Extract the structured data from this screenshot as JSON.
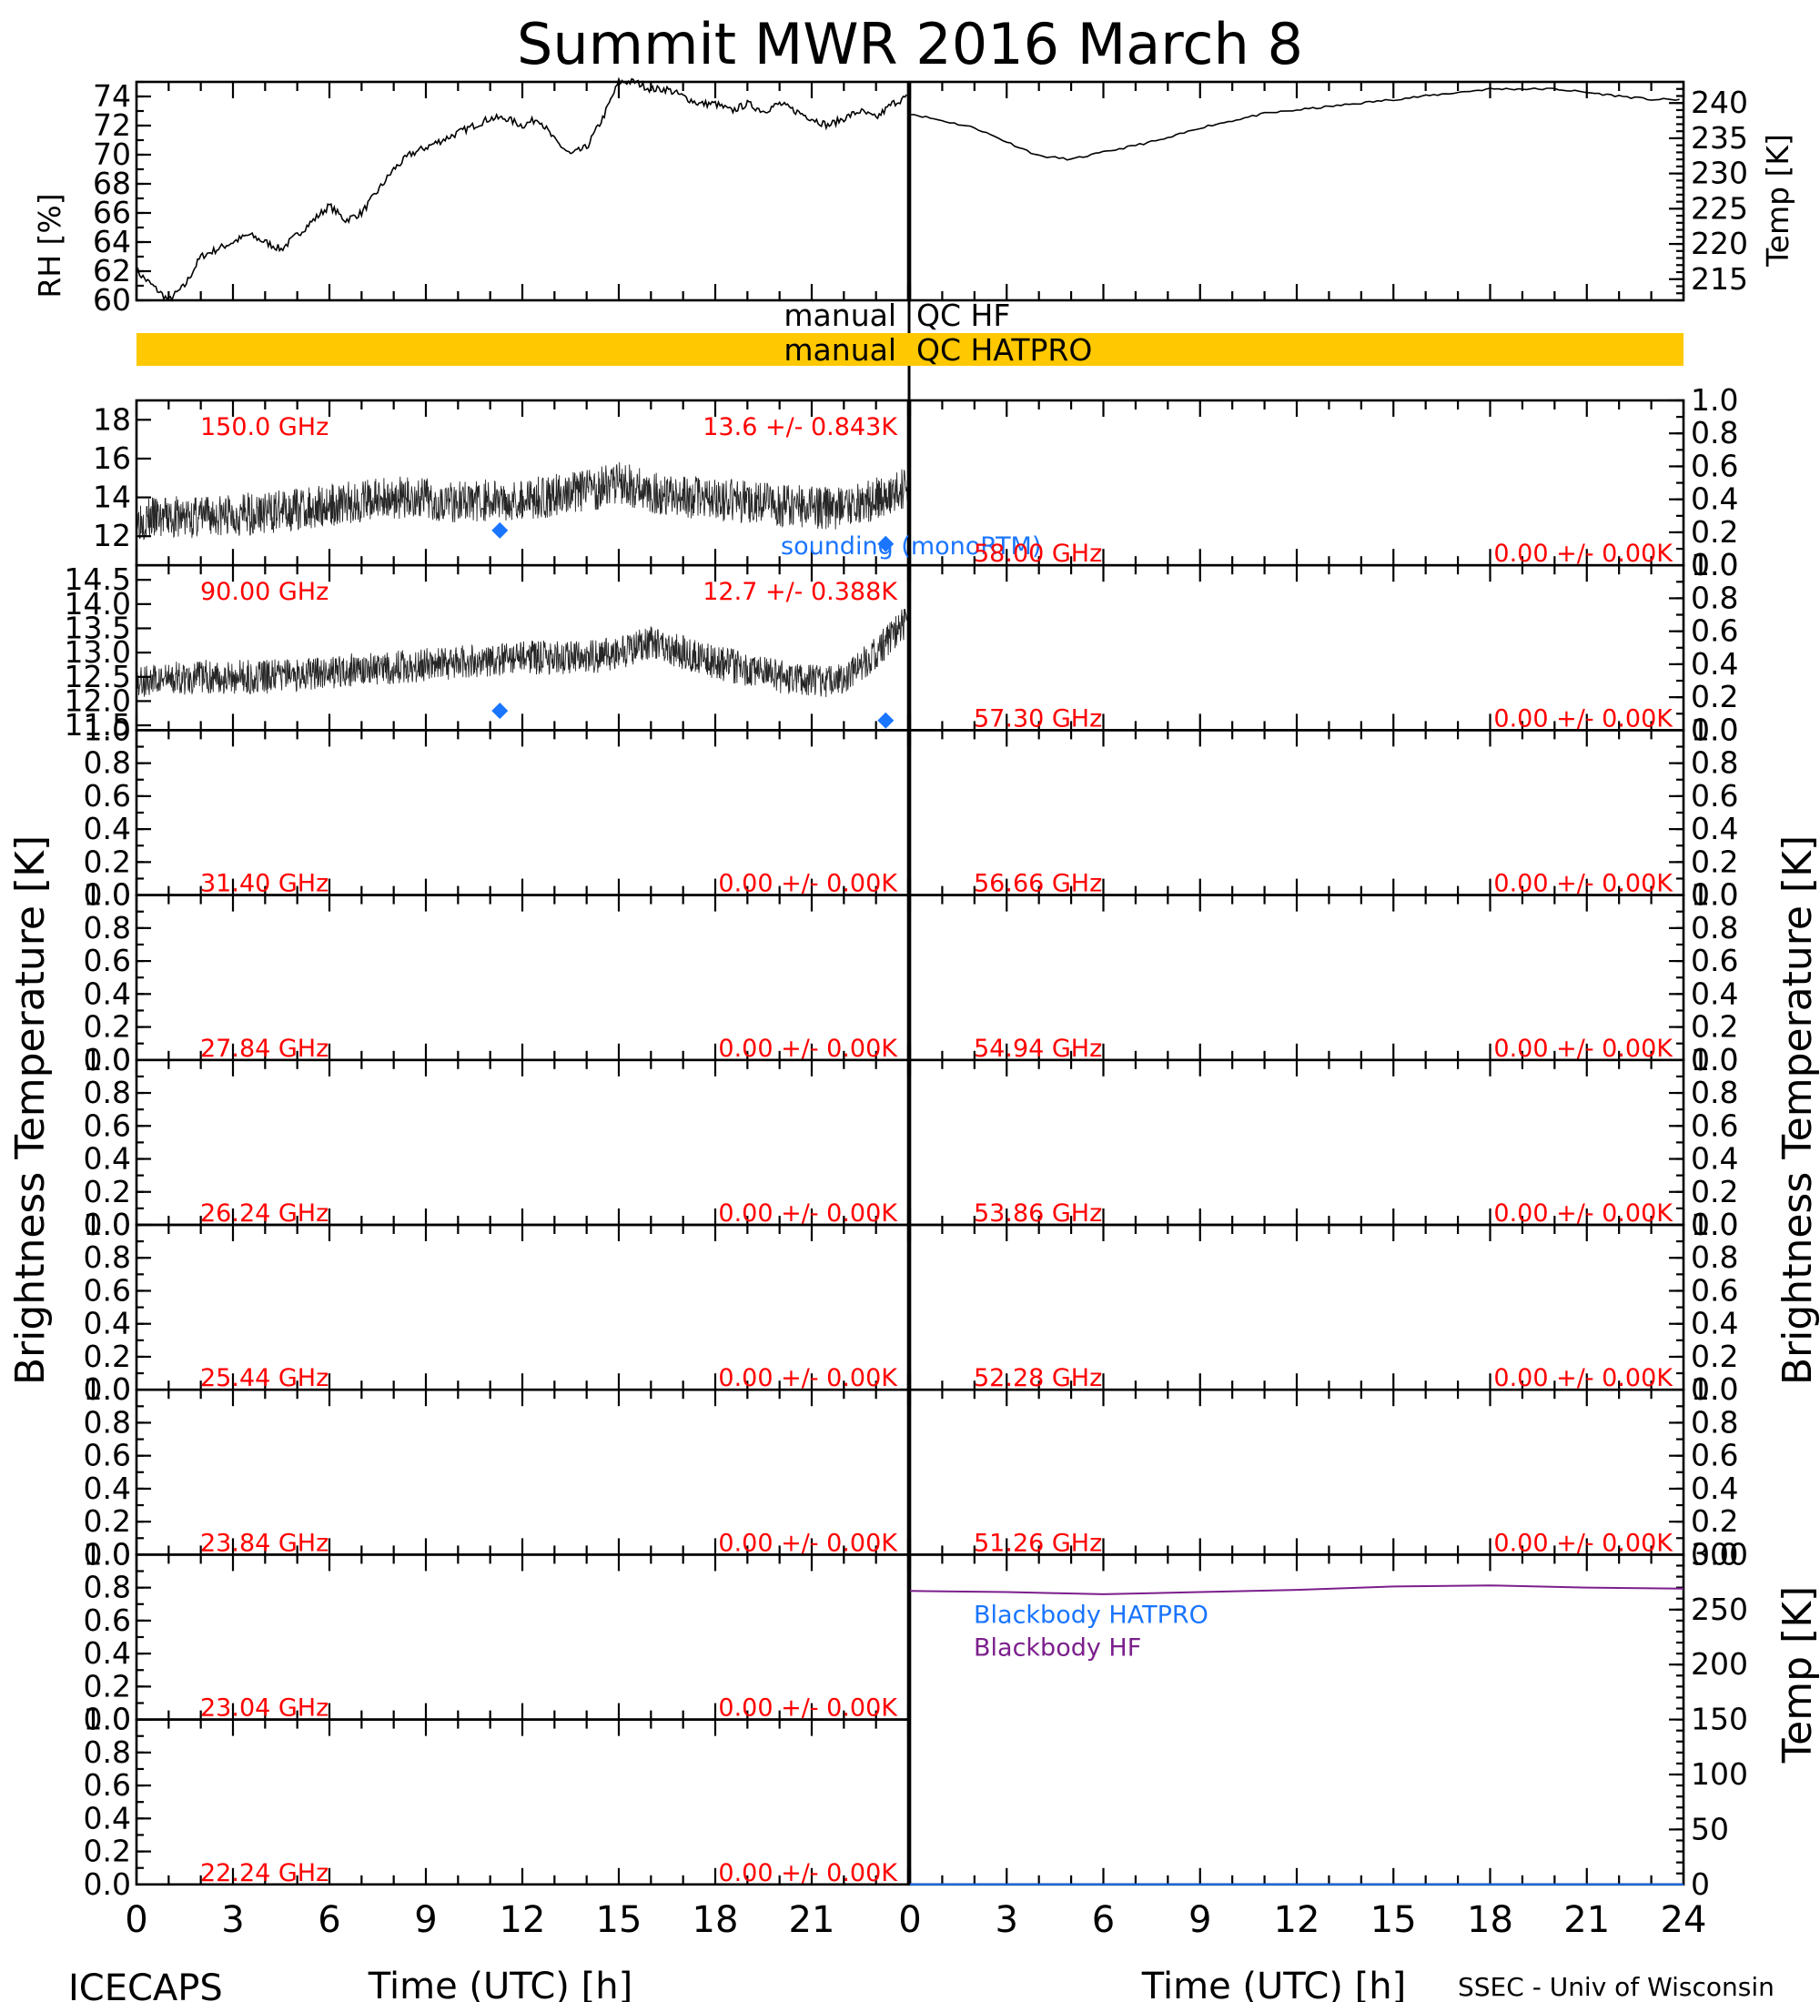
{
  "title": "Summit MWR 2016 March  8",
  "footer": {
    "left": "ICECAPS",
    "right": "SSEC - Univ of Wisconsin"
  },
  "qc": {
    "hf_prefix": "manual",
    "hf_label": "QC HF",
    "hatpro_prefix": "manual",
    "hatpro_label": "QC HATPRO",
    "hatpro_color": "#ffc800"
  },
  "axis_labels": {
    "rh": "RH [%]",
    "temp_top": "Temp [K]",
    "bt_left": "Brightness Temperature [K]",
    "bt_right": "Brightness Temperature [K]",
    "bb_temp": "Temp [K]",
    "time_left": "Time (UTC) [h]",
    "time_right": "Time (UTC) [h]"
  },
  "colors": {
    "data": "#000000",
    "annotation": "#ff0000",
    "sounding": "#1a75ff",
    "bb_hatpro": "#1a75ff",
    "bb_hf": "#7b1f8c"
  },
  "chart_data": [
    {
      "id": "rh",
      "type": "line",
      "side": "left",
      "ylabel": "RH [%]",
      "xlim": [
        0,
        24
      ],
      "ylim": [
        60,
        75
      ],
      "yticks": [
        "60",
        "62",
        "64",
        "66",
        "68",
        "70",
        "72",
        "74"
      ],
      "x": [
        0,
        0.5,
        1,
        1.5,
        2,
        2.5,
        3,
        3.5,
        4,
        4.5,
        5,
        5.5,
        6,
        6.5,
        7,
        7.5,
        8,
        8.5,
        9,
        9.5,
        10,
        10.5,
        11,
        11.5,
        12,
        12.5,
        13,
        13.5,
        14,
        14.5,
        15,
        15.5,
        16,
        16.5,
        17,
        17.5,
        18,
        18.5,
        19,
        19.5,
        20,
        20.5,
        21,
        21.5,
        22,
        22.5,
        23,
        23.5,
        24
      ],
      "values": [
        62,
        61,
        60,
        61,
        63,
        63.5,
        64,
        64.5,
        64,
        63.5,
        64.5,
        65.5,
        66.5,
        65.5,
        66,
        67.5,
        69,
        70,
        70.5,
        71,
        71.5,
        72,
        72.5,
        72.5,
        72,
        72.5,
        71,
        70,
        70.5,
        72.5,
        75,
        75,
        74.5,
        74.5,
        74,
        73.5,
        73.5,
        73,
        73.5,
        73,
        73.5,
        73,
        72.5,
        72,
        72.5,
        73,
        72.5,
        73.5,
        74
      ]
    },
    {
      "id": "air_temp",
      "type": "line",
      "side": "right",
      "ylabel": "Temp [K]",
      "xlim": [
        0,
        24
      ],
      "ylim": [
        212,
        243
      ],
      "yticks": [
        "215",
        "220",
        "225",
        "230",
        "235",
        "240"
      ],
      "x": [
        0,
        1,
        2,
        3,
        4,
        5,
        6,
        7,
        8,
        9,
        10,
        11,
        12,
        13,
        14,
        15,
        16,
        17,
        18,
        19,
        20,
        21,
        22,
        23,
        24
      ],
      "values": [
        238.5,
        237.5,
        236.5,
        234.5,
        232.5,
        232,
        233,
        234,
        235,
        236.5,
        237.5,
        238.5,
        239,
        239.5,
        240,
        240.5,
        241,
        241.5,
        242,
        242,
        242,
        241.5,
        241,
        240.5,
        240.5
      ]
    },
    {
      "id": "bt_150",
      "type": "scatter",
      "side": "left",
      "label": "150.0 GHz",
      "stats": "13.6 +/- 0.843K",
      "xlim": [
        0,
        24
      ],
      "ylim": [
        10.5,
        19
      ],
      "yticks": [
        "12",
        "14",
        "16",
        "18"
      ],
      "sounding_label": "sounding (monoRTM)",
      "trend": {
        "x": [
          0,
          2,
          4,
          6,
          8,
          10,
          12,
          14,
          15,
          16,
          18,
          20,
          22,
          24
        ],
        "values": [
          12.9,
          13,
          13.2,
          13.6,
          14,
          13.8,
          13.9,
          14.3,
          14.8,
          14.2,
          13.9,
          13.6,
          13.4,
          14.5
        ]
      },
      "noise": 1.1,
      "sounding": [
        {
          "x": 11.3,
          "y": 12.3
        },
        {
          "x": 23.3,
          "y": 11.6
        }
      ]
    },
    {
      "id": "bt_90",
      "type": "scatter",
      "side": "left",
      "label": "90.00 GHz",
      "stats": "12.7 +/- 0.388K",
      "xlim": [
        0,
        24
      ],
      "ylim": [
        11.4,
        14.8
      ],
      "yticks": [
        "11.5",
        "12.0",
        "12.5",
        "13.0",
        "13.5",
        "14.0",
        "14.5"
      ],
      "trend": {
        "x": [
          0,
          2,
          4,
          6,
          8,
          10,
          12,
          14,
          15,
          16,
          18,
          20,
          22,
          23,
          24
        ],
        "values": [
          12.4,
          12.5,
          12.5,
          12.6,
          12.7,
          12.8,
          12.9,
          12.9,
          13,
          13.2,
          12.8,
          12.5,
          12.4,
          13,
          13.7
        ]
      },
      "noise": 0.35,
      "sounding": [
        {
          "x": 11.3,
          "y": 11.8
        },
        {
          "x": 23.3,
          "y": 11.6
        }
      ]
    },
    {
      "id": "ch_58_00",
      "side": "right",
      "label": "58.00 GHz",
      "stats": "0.00 +/- 0.00K",
      "ylim": [
        0,
        1
      ]
    },
    {
      "id": "ch_57_30",
      "side": "right",
      "label": "57.30 GHz",
      "stats": "0.00 +/- 0.00K",
      "ylim": [
        0,
        1
      ]
    },
    {
      "id": "ch_31_40",
      "side": "left",
      "label": "31.40 GHz",
      "stats": "0.00 +/- 0.00K",
      "ylim": [
        0,
        1
      ]
    },
    {
      "id": "ch_56_66",
      "side": "right",
      "label": "56.66 GHz",
      "stats": "0.00 +/- 0.00K",
      "ylim": [
        0,
        1
      ]
    },
    {
      "id": "ch_27_84",
      "side": "left",
      "label": "27.84 GHz",
      "stats": "0.00 +/- 0.00K",
      "ylim": [
        0,
        1
      ]
    },
    {
      "id": "ch_54_94",
      "side": "right",
      "label": "54.94 GHz",
      "stats": "0.00 +/- 0.00K",
      "ylim": [
        0,
        1
      ]
    },
    {
      "id": "ch_26_24",
      "side": "left",
      "label": "26.24 GHz",
      "stats": "0.00 +/- 0.00K",
      "ylim": [
        0,
        1
      ]
    },
    {
      "id": "ch_53_86",
      "side": "right",
      "label": "53.86 GHz",
      "stats": "0.00 +/- 0.00K",
      "ylim": [
        0,
        1
      ]
    },
    {
      "id": "ch_25_44",
      "side": "left",
      "label": "25.44 GHz",
      "stats": "0.00 +/- 0.00K",
      "ylim": [
        0,
        1
      ]
    },
    {
      "id": "ch_52_28",
      "side": "right",
      "label": "52.28 GHz",
      "stats": "0.00 +/- 0.00K",
      "ylim": [
        0,
        1
      ]
    },
    {
      "id": "ch_23_84",
      "side": "left",
      "label": "23.84 GHz",
      "stats": "0.00 +/- 0.00K",
      "ylim": [
        0,
        1
      ]
    },
    {
      "id": "ch_51_26",
      "side": "right",
      "label": "51.26 GHz",
      "stats": "0.00 +/- 0.00K",
      "ylim": [
        0,
        1
      ]
    },
    {
      "id": "ch_23_04",
      "side": "left",
      "label": "23.04 GHz",
      "stats": "0.00 +/- 0.00K",
      "ylim": [
        0,
        1
      ]
    },
    {
      "id": "ch_22_24",
      "side": "left",
      "label": "22.24 GHz",
      "stats": "0.00 +/- 0.00K",
      "ylim": [
        0,
        1
      ]
    },
    {
      "id": "blackbody",
      "type": "line",
      "side": "right",
      "ylabel": "Temp [K]",
      "xlim": [
        0,
        24
      ],
      "ylim": [
        0,
        300
      ],
      "yticks": [
        "0",
        "50",
        "100",
        "150",
        "200",
        "250",
        "300"
      ],
      "series": [
        {
          "name": "Blackbody HATPRO",
          "x": [
            0,
            24
          ],
          "values": [
            0,
            0
          ]
        },
        {
          "name": "Blackbody HF",
          "x": [
            0,
            3,
            6,
            9,
            12,
            15,
            18,
            21,
            24
          ],
          "values": [
            267,
            266,
            264,
            266,
            268,
            271,
            272,
            270,
            269
          ]
        }
      ]
    }
  ],
  "bt_yticks": [
    "0.0",
    "0.2",
    "0.4",
    "0.6",
    "0.8",
    "1.0"
  ],
  "time_ticks_left": [
    "0",
    "3",
    "6",
    "9",
    "12",
    "15",
    "18",
    "21"
  ],
  "time_ticks_right": [
    "0",
    "3",
    "6",
    "9",
    "12",
    "15",
    "18",
    "21",
    "24"
  ]
}
